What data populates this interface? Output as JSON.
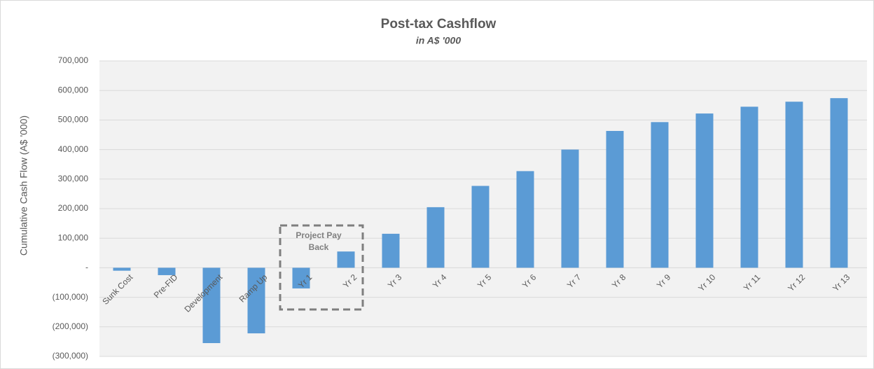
{
  "chart_data": {
    "type": "bar",
    "title": "Post-tax Cashflow",
    "subtitle": "in A$ '000",
    "y_axis_label": "Cumulative Cash Flow (A$ '000)",
    "annotation": "Project Pay Back",
    "categories": [
      "Sunk Cost",
      "Pre-FID",
      "Development",
      "Ramp Up",
      "Yr 1",
      "Yr 2",
      "Yr 3",
      "Yr 4",
      "Yr 5",
      "Yr 6",
      "Yr 7",
      "Yr 8",
      "Yr 9",
      "Yr 10",
      "Yr 11",
      "Yr 12",
      "Yr 13"
    ],
    "values": [
      -10000,
      -25000,
      -255000,
      -222000,
      -70000,
      55000,
      115000,
      205000,
      277000,
      327000,
      400000,
      463000,
      493000,
      522000,
      545000,
      562000,
      574000
    ],
    "color": "#5b9bd5",
    "ylim": [
      -300000,
      700000
    ],
    "yticks": [
      {
        "value": -300000,
        "label": "(300,000)"
      },
      {
        "value": -200000,
        "label": "(200,000)"
      },
      {
        "value": -100000,
        "label": "(100,000)"
      },
      {
        "value": 0,
        "label": "-"
      },
      {
        "value": 100000,
        "label": "100,000"
      },
      {
        "value": 200000,
        "label": "200,000"
      },
      {
        "value": 300000,
        "label": "300,000"
      },
      {
        "value": 400000,
        "label": "400,000"
      },
      {
        "value": 500000,
        "label": "500,000"
      },
      {
        "value": 600000,
        "label": "600,000"
      },
      {
        "value": 700000,
        "label": "700,000"
      }
    ],
    "grid": true
  }
}
